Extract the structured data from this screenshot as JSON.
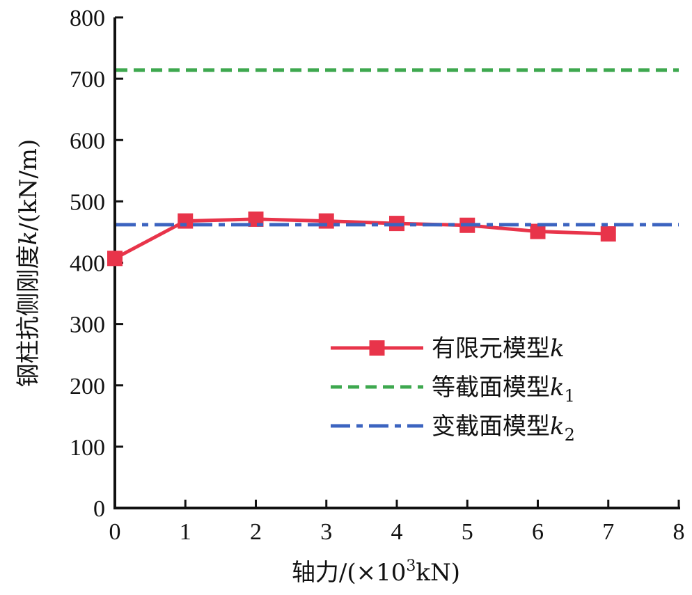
{
  "chart_data": {
    "type": "line",
    "title": "",
    "xlabel": "轴力/(×10³kN)",
    "ylabel": "钢柱抗侧刚度k/(kN/m)",
    "xlim": [
      0,
      8
    ],
    "ylim": [
      0,
      800
    ],
    "xticks": [
      "0",
      "1",
      "2",
      "3",
      "4",
      "5",
      "6",
      "7",
      "8"
    ],
    "yticks": [
      "0",
      "100",
      "200",
      "300",
      "400",
      "500",
      "600",
      "700",
      "800"
    ],
    "grid": false,
    "legend_position": "lower-right",
    "series": [
      {
        "name": "有限元模型k",
        "style": "solid-square-markers",
        "color": "#e8344a",
        "x": [
          0,
          1,
          2,
          3,
          4,
          5,
          6,
          7
        ],
        "values": [
          407,
          468,
          471,
          468,
          464,
          461,
          451,
          447
        ]
      },
      {
        "name": "等截面模型k1",
        "style": "dashed",
        "color": "#3ea84f",
        "constant": 714
      },
      {
        "name": "变截面模型k2",
        "style": "dash-dot",
        "color": "#3c64c0",
        "constant": 462
      }
    ],
    "legend": [
      {
        "text": "有限元模型",
        "var": "k",
        "sub": ""
      },
      {
        "text": "等截面模型",
        "var": "k",
        "sub": "1"
      },
      {
        "text": "变截面模型",
        "var": "k",
        "sub": "2"
      }
    ],
    "xlabel_parts": {
      "pre": "轴力/(×10",
      "sup": "3",
      "post": "kN)"
    },
    "ylabel_parts": {
      "pre": "钢柱抗侧刚度",
      "var": "k",
      "post": "/(kN/m)"
    }
  }
}
